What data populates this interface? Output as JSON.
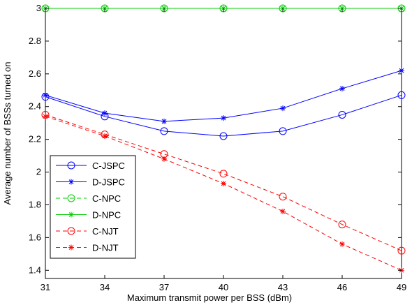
{
  "chart_data": {
    "type": "line",
    "title": "",
    "xlabel": "Maximum transmit power per BSS (dBm)",
    "ylabel": "Average number of BSSs turned on",
    "x": [
      31,
      34,
      37,
      40,
      43,
      46,
      49
    ],
    "xlim": [
      31,
      49
    ],
    "ylim": [
      1.35,
      3.0
    ],
    "xticks": [
      "31",
      "34",
      "37",
      "40",
      "43",
      "46",
      "49"
    ],
    "yticks": [
      {
        "value": 1.4,
        "label": "1.4"
      },
      {
        "value": 1.6,
        "label": "1.6"
      },
      {
        "value": 1.8,
        "label": "1.8"
      },
      {
        "value": 2.0,
        "label": "2"
      },
      {
        "value": 2.2,
        "label": "2.2"
      },
      {
        "value": 2.4,
        "label": "2.4"
      },
      {
        "value": 2.6,
        "label": "2.6"
      },
      {
        "value": 2.8,
        "label": "2.8"
      },
      {
        "value": 3.0,
        "label": "3"
      }
    ],
    "grid": false,
    "legend_position": "bottom-left",
    "series": [
      {
        "name": "C-JSPC",
        "color": "#0000ff",
        "dash": "solid",
        "marker": "circle",
        "values": [
          2.46,
          2.34,
          2.25,
          2.22,
          2.25,
          2.35,
          2.47
        ]
      },
      {
        "name": "D-JSPC",
        "color": "#0000ff",
        "dash": "solid",
        "marker": "star",
        "values": [
          2.47,
          2.36,
          2.31,
          2.33,
          2.39,
          2.51,
          2.62
        ]
      },
      {
        "name": "C-NPC",
        "color": "#00cc00",
        "dash": "dashed",
        "marker": "circle",
        "values": [
          3.0,
          3.0,
          3.0,
          3.0,
          3.0,
          3.0,
          3.0
        ]
      },
      {
        "name": "D-NPC",
        "color": "#00cc00",
        "dash": "solid",
        "marker": "star",
        "values": [
          3.0,
          3.0,
          3.0,
          3.0,
          3.0,
          3.0,
          3.0
        ]
      },
      {
        "name": "C-NJT",
        "color": "#ff0000",
        "dash": "dashed",
        "marker": "circle",
        "values": [
          2.35,
          2.23,
          2.11,
          1.99,
          1.85,
          1.68,
          1.52
        ]
      },
      {
        "name": "D-NJT",
        "color": "#ff0000",
        "dash": "dashed",
        "marker": "star",
        "values": [
          2.34,
          2.22,
          2.08,
          1.93,
          1.76,
          1.56,
          1.4
        ]
      }
    ]
  }
}
